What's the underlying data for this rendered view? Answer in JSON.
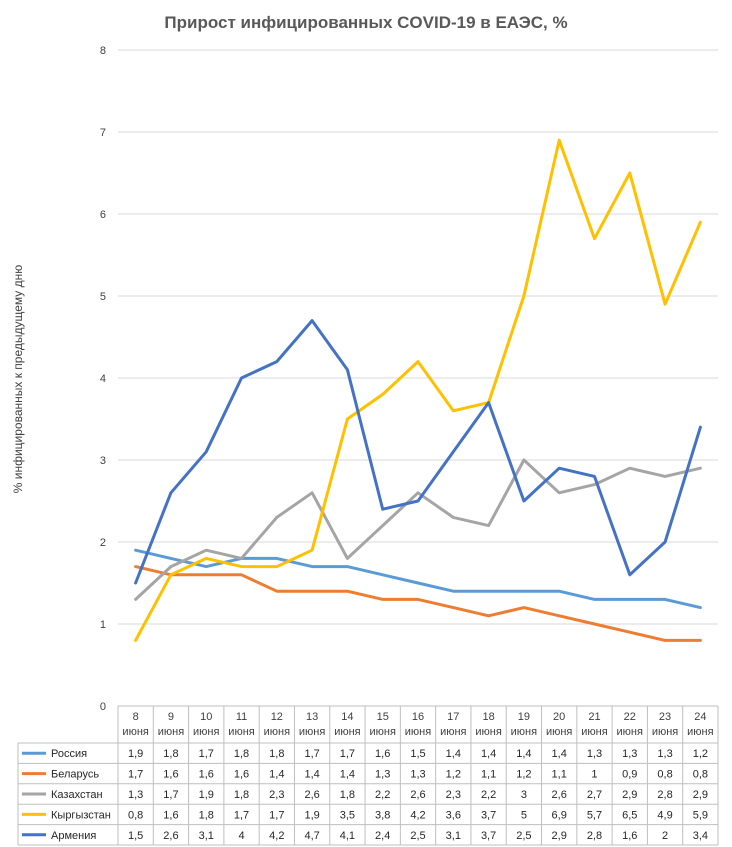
{
  "chart_data": {
    "type": "line",
    "title": "Прирост инфицированных COVID-19 в ЕАЭС, %",
    "ylabel": "% инфицированных к предыдущему дню",
    "ylim": [
      0,
      8
    ],
    "yticks": [
      0,
      1,
      2,
      3,
      4,
      5,
      6,
      7,
      8
    ],
    "grid": true,
    "legend": "table-bottom",
    "categories_day": [
      "8",
      "9",
      "10",
      "11",
      "12",
      "13",
      "14",
      "15",
      "16",
      "17",
      "18",
      "19",
      "20",
      "21",
      "22",
      "23",
      "24"
    ],
    "categories_month": "июня",
    "series": [
      {
        "name": "Россия",
        "color": "#5b9bd5",
        "values": [
          1.9,
          1.8,
          1.7,
          1.8,
          1.8,
          1.7,
          1.7,
          1.6,
          1.5,
          1.4,
          1.4,
          1.4,
          1.4,
          1.3,
          1.3,
          1.3,
          1.2
        ],
        "labels": [
          "1,9",
          "1,8",
          "1,7",
          "1,8",
          "1,8",
          "1,7",
          "1,7",
          "1,6",
          "1,5",
          "1,4",
          "1,4",
          "1,4",
          "1,4",
          "1,3",
          "1,3",
          "1,3",
          "1,2"
        ]
      },
      {
        "name": "Беларусь",
        "color": "#ed7d31",
        "values": [
          1.7,
          1.6,
          1.6,
          1.6,
          1.4,
          1.4,
          1.4,
          1.3,
          1.3,
          1.2,
          1.1,
          1.2,
          1.1,
          1.0,
          0.9,
          0.8,
          0.8
        ],
        "labels": [
          "1,7",
          "1,6",
          "1,6",
          "1,6",
          "1,4",
          "1,4",
          "1,4",
          "1,3",
          "1,3",
          "1,2",
          "1,1",
          "1,2",
          "1,1",
          "1",
          "0,9",
          "0,8",
          "0,8"
        ]
      },
      {
        "name": "Казахстан",
        "color": "#a5a5a5",
        "values": [
          1.3,
          1.7,
          1.9,
          1.8,
          2.3,
          2.6,
          1.8,
          2.2,
          2.6,
          2.3,
          2.2,
          3.0,
          2.6,
          2.7,
          2.9,
          2.8,
          2.9
        ],
        "labels": [
          "1,3",
          "1,7",
          "1,9",
          "1,8",
          "2,3",
          "2,6",
          "1,8",
          "2,2",
          "2,6",
          "2,3",
          "2,2",
          "3",
          "2,6",
          "2,7",
          "2,9",
          "2,8",
          "2,9"
        ]
      },
      {
        "name": "Кыргызстан",
        "color": "#ffc000",
        "values": [
          0.8,
          1.6,
          1.8,
          1.7,
          1.7,
          1.9,
          3.5,
          3.8,
          4.2,
          3.6,
          3.7,
          5.0,
          6.9,
          5.7,
          6.5,
          4.9,
          5.9
        ],
        "labels": [
          "0,8",
          "1,6",
          "1,8",
          "1,7",
          "1,7",
          "1,9",
          "3,5",
          "3,8",
          "4,2",
          "3,6",
          "3,7",
          "5",
          "6,9",
          "5,7",
          "6,5",
          "4,9",
          "5,9"
        ]
      },
      {
        "name": "Армения",
        "color": "#4472c4",
        "values": [
          1.5,
          2.6,
          3.1,
          4.0,
          4.2,
          4.7,
          4.1,
          2.4,
          2.5,
          3.1,
          3.7,
          2.5,
          2.9,
          2.8,
          1.6,
          2.0,
          3.4
        ],
        "labels": [
          "1,5",
          "2,6",
          "3,1",
          "4",
          "4,2",
          "4,7",
          "4,1",
          "2,4",
          "2,5",
          "3,1",
          "3,7",
          "2,5",
          "2,9",
          "2,8",
          "1,6",
          "2",
          "3,4"
        ]
      }
    ]
  }
}
